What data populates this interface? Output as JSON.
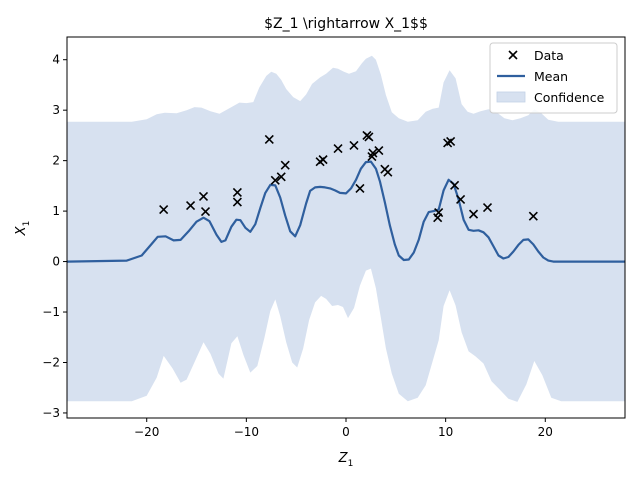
{
  "chart_data": {
    "type": "line",
    "title": "$Z_1 \\rightarrow X_1$$",
    "xlabel": "Z",
    "xlabel_sub": "1",
    "ylabel": "X",
    "ylabel_sub": "1",
    "xlim": [
      -28,
      28
    ],
    "ylim": [
      -3.1,
      4.45
    ],
    "xticks": [
      -20,
      -10,
      0,
      10,
      20
    ],
    "yticks": [
      -3,
      -2,
      -1,
      0,
      1,
      2,
      3,
      4
    ],
    "grid": false,
    "legend_position": "top-right",
    "colors": {
      "mean": "#2f5f9e",
      "confidence": "#d7e1f0",
      "data": "#000000"
    },
    "series": [
      {
        "name": "Data",
        "kind": "scatter",
        "marker": "x",
        "points": [
          [
            -18.3,
            1.03
          ],
          [
            -15.6,
            1.11
          ],
          [
            -14.3,
            1.29
          ],
          [
            -14.1,
            0.99
          ],
          [
            -10.9,
            1.37
          ],
          [
            -10.9,
            1.18
          ],
          [
            -7.7,
            2.42
          ],
          [
            -7.1,
            1.61
          ],
          [
            -6.5,
            1.68
          ],
          [
            -6.1,
            1.91
          ],
          [
            -2.6,
            1.98
          ],
          [
            -2.3,
            2.02
          ],
          [
            -0.8,
            2.24
          ],
          [
            0.8,
            2.3
          ],
          [
            1.4,
            1.45
          ],
          [
            2.1,
            2.5
          ],
          [
            2.3,
            2.47
          ],
          [
            2.6,
            2.08
          ],
          [
            2.7,
            2.15
          ],
          [
            3.3,
            2.2
          ],
          [
            3.9,
            1.83
          ],
          [
            4.2,
            1.77
          ],
          [
            9.2,
            0.87
          ],
          [
            9.3,
            0.97
          ],
          [
            10.2,
            2.35
          ],
          [
            10.5,
            2.38
          ],
          [
            10.9,
            1.51
          ],
          [
            11.5,
            1.23
          ],
          [
            12.8,
            0.94
          ],
          [
            14.2,
            1.07
          ],
          [
            18.8,
            0.9
          ]
        ]
      },
      {
        "name": "Mean",
        "kind": "line",
        "x": [
          -28,
          -22,
          -20.5,
          -19.5,
          -18.9,
          -18.1,
          -17.3,
          -16.6,
          -15.8,
          -15.0,
          -14.3,
          -13.7,
          -13.0,
          -12.5,
          -12.1,
          -11.5,
          -11.0,
          -10.6,
          -10.1,
          -9.6,
          -9.1,
          -8.6,
          -8.1,
          -7.6,
          -7.1,
          -6.6,
          -6.1,
          -5.6,
          -5.1,
          -4.6,
          -4.0,
          -3.6,
          -3.1,
          -2.6,
          -2.1,
          -1.6,
          -1.1,
          -0.6,
          0.0,
          0.5,
          1.0,
          1.5,
          2.0,
          2.5,
          3.0,
          3.4,
          3.9,
          4.4,
          4.9,
          5.3,
          5.8,
          6.3,
          6.8,
          7.3,
          7.8,
          8.3,
          8.8,
          9.3,
          9.8,
          10.3,
          10.8,
          11.3,
          11.8,
          12.3,
          12.8,
          13.3,
          13.8,
          14.3,
          14.8,
          15.3,
          15.8,
          16.3,
          16.8,
          17.3,
          17.8,
          18.3,
          18.8,
          19.3,
          19.8,
          20.3,
          20.8,
          21.3,
          22.0,
          23.0,
          28.0
        ],
        "y": [
          0.0,
          0.02,
          0.12,
          0.35,
          0.49,
          0.5,
          0.42,
          0.43,
          0.6,
          0.79,
          0.87,
          0.8,
          0.53,
          0.39,
          0.42,
          0.69,
          0.83,
          0.82,
          0.67,
          0.59,
          0.74,
          1.06,
          1.36,
          1.52,
          1.51,
          1.27,
          0.91,
          0.6,
          0.5,
          0.72,
          1.15,
          1.4,
          1.47,
          1.48,
          1.47,
          1.45,
          1.41,
          1.36,
          1.35,
          1.45,
          1.62,
          1.84,
          1.97,
          1.98,
          1.84,
          1.59,
          1.17,
          0.72,
          0.34,
          0.12,
          0.03,
          0.04,
          0.18,
          0.43,
          0.79,
          0.98,
          1.0,
          1.03,
          1.41,
          1.62,
          1.54,
          1.23,
          0.83,
          0.63,
          0.61,
          0.62,
          0.58,
          0.48,
          0.3,
          0.12,
          0.06,
          0.09,
          0.2,
          0.33,
          0.43,
          0.44,
          0.34,
          0.2,
          0.08,
          0.02,
          0.0,
          0.0,
          0.0,
          0.0,
          0.0
        ]
      },
      {
        "name": "Confidence",
        "kind": "band",
        "upper_x": [
          -28,
          -21.5,
          -20.0,
          -19.0,
          -18.2,
          -17.0,
          -16.0,
          -15.2,
          -14.5,
          -13.6,
          -12.7,
          -11.5,
          -10.7,
          -10.0,
          -9.3,
          -8.7,
          -8.0,
          -7.5,
          -7.0,
          -6.5,
          -6.0,
          -5.3,
          -4.6,
          -4.0,
          -3.4,
          -2.6,
          -2.0,
          -1.3,
          -0.8,
          -0.2,
          0.3,
          1.0,
          1.6,
          2.0,
          2.6,
          3.0,
          3.5,
          4.0,
          4.6,
          5.3,
          6.2,
          7.2,
          8.0,
          8.7,
          9.3,
          9.8,
          10.4,
          11.0,
          11.6,
          12.2,
          12.8,
          13.5,
          14.3,
          15.1,
          15.9,
          16.7,
          17.5,
          18.3,
          18.9,
          19.6,
          20.3,
          21.3,
          23.0,
          28.0
        ],
        "upper_y": [
          2.77,
          2.77,
          2.82,
          2.92,
          2.95,
          2.94,
          3.0,
          3.06,
          3.05,
          2.98,
          2.93,
          3.06,
          3.15,
          3.14,
          3.16,
          3.45,
          3.68,
          3.76,
          3.72,
          3.6,
          3.42,
          3.26,
          3.18,
          3.31,
          3.52,
          3.65,
          3.72,
          3.84,
          3.82,
          3.76,
          3.72,
          3.77,
          3.93,
          4.02,
          4.08,
          4.0,
          3.7,
          3.3,
          2.96,
          2.84,
          2.77,
          2.8,
          2.97,
          3.03,
          3.05,
          3.55,
          3.79,
          3.63,
          3.12,
          2.97,
          2.93,
          2.98,
          3.02,
          2.96,
          2.84,
          2.8,
          2.84,
          2.9,
          3.02,
          2.94,
          2.81,
          2.77,
          2.77,
          2.77
        ],
        "lower_x": [
          -28,
          -21.5,
          -20.0,
          -19.0,
          -18.3,
          -17.4,
          -16.6,
          -16.0,
          -15.1,
          -14.3,
          -13.6,
          -12.8,
          -12.3,
          -11.5,
          -10.9,
          -10.3,
          -9.6,
          -8.9,
          -8.2,
          -7.6,
          -7.1,
          -6.6,
          -6.0,
          -5.4,
          -4.9,
          -4.3,
          -3.7,
          -3.1,
          -2.5,
          -2.0,
          -1.4,
          -0.8,
          -0.3,
          0.2,
          0.8,
          1.4,
          2.0,
          2.5,
          3.0,
          3.5,
          4.0,
          4.6,
          5.3,
          6.2,
          7.2,
          8.0,
          8.7,
          9.3,
          9.8,
          10.4,
          11.0,
          11.6,
          12.3,
          13.0,
          13.8,
          14.6,
          15.4,
          16.3,
          17.2,
          18.1,
          18.9,
          19.7,
          20.6,
          21.6,
          23.0,
          28.0
        ],
        "lower_y": [
          -2.77,
          -2.77,
          -2.66,
          -2.3,
          -1.87,
          -2.12,
          -2.4,
          -2.34,
          -1.95,
          -1.6,
          -1.83,
          -2.22,
          -2.32,
          -1.62,
          -1.48,
          -1.85,
          -2.2,
          -2.07,
          -1.52,
          -0.98,
          -0.75,
          -1.08,
          -1.6,
          -2.0,
          -2.1,
          -1.72,
          -1.16,
          -0.81,
          -0.68,
          -0.74,
          -0.88,
          -0.86,
          -0.9,
          -1.12,
          -0.92,
          -0.48,
          -0.18,
          -0.14,
          -0.53,
          -1.12,
          -1.72,
          -2.22,
          -2.62,
          -2.77,
          -2.7,
          -2.45,
          -1.97,
          -1.56,
          -0.88,
          -0.57,
          -0.87,
          -1.4,
          -1.78,
          -1.88,
          -2.02,
          -2.37,
          -2.53,
          -2.72,
          -2.78,
          -2.43,
          -1.97,
          -2.25,
          -2.7,
          -2.77,
          -2.77,
          -2.77
        ]
      }
    ]
  }
}
